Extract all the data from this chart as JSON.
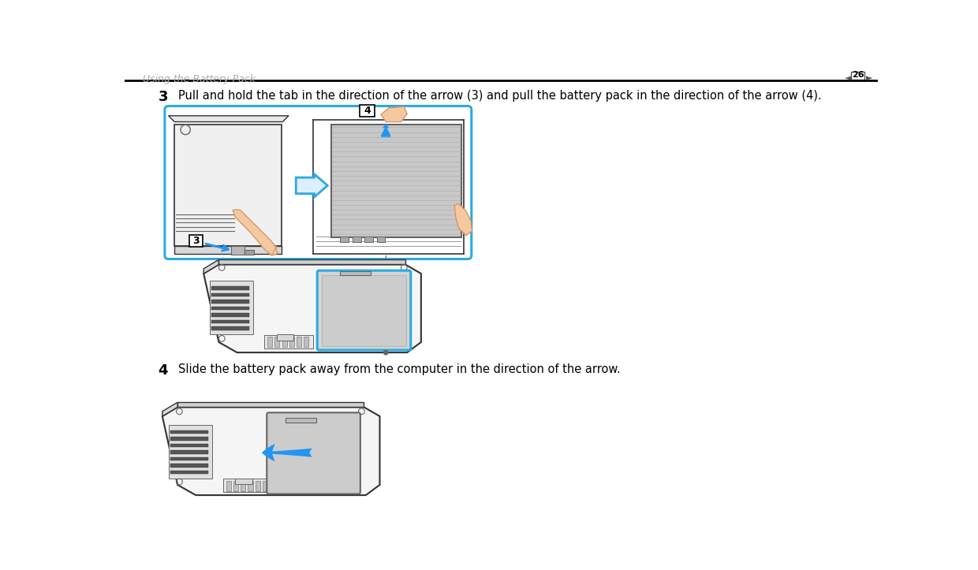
{
  "bg_color": "#ffffff",
  "header_text": "Using the Battery Pack",
  "header_text_color": "#aaaaaa",
  "page_number": "26",
  "header_line_color": "#000000",
  "step3_number": "3",
  "step3_text": "Pull and hold the tab in the direction of the arrow (3) and pull the battery pack in the direction of the arrow (4).",
  "step4_number": "4",
  "step4_text": "Slide the battery pack away from the computer in the direction of the arrow.",
  "step_number_color": "#000000",
  "step_text_color": "#000000",
  "cyan_color": "#29abe2",
  "blue_arrow_color": "#2196f3",
  "gray_fill": "#c8c8c8",
  "skin_color": "#f5c9a0",
  "skin_edge": "#d4956a",
  "dark_line": "#333333",
  "med_line": "#666666",
  "light_line": "#999999"
}
